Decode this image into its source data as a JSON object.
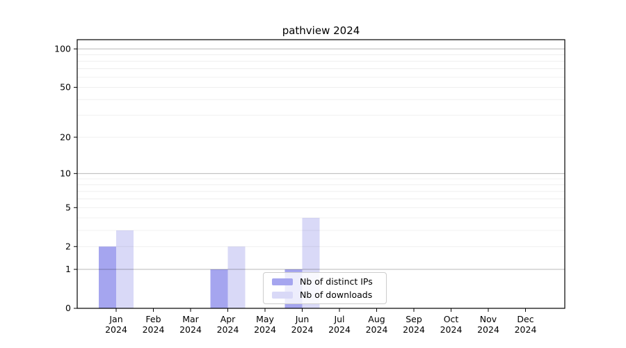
{
  "title": "pathview 2024",
  "chart_data": {
    "type": "bar",
    "title": "pathview 2024",
    "xlabel": "",
    "ylabel": "",
    "categories": [
      "Jan 2024",
      "Feb 2024",
      "Mar 2024",
      "Apr 2024",
      "May 2024",
      "Jun 2024",
      "Jul 2024",
      "Aug 2024",
      "Sep 2024",
      "Oct 2024",
      "Nov 2024",
      "Dec 2024"
    ],
    "series": [
      {
        "name": "Nb of distinct IPs",
        "color": "#a5a5ef",
        "values": [
          2,
          0,
          0,
          1,
          0,
          1,
          0,
          0,
          0,
          0,
          0,
          0
        ]
      },
      {
        "name": "Nb of downloads",
        "color": "#d9d9f7",
        "values": [
          3,
          0,
          0,
          2,
          0,
          4,
          0,
          0,
          0,
          0,
          0,
          0
        ]
      }
    ],
    "yscale": "log1p",
    "ylim": [
      0,
      118
    ],
    "yticks_labeled": [
      0,
      1,
      2,
      5,
      10,
      20,
      50,
      100
    ],
    "gridlines_major": [
      1,
      10,
      100
    ],
    "gridlines_minor": [
      2,
      3,
      4,
      5,
      6,
      7,
      8,
      9,
      20,
      30,
      40,
      50,
      60,
      70,
      80,
      90
    ],
    "grid": "horizontal",
    "legend_position": "lower-center-inside"
  }
}
